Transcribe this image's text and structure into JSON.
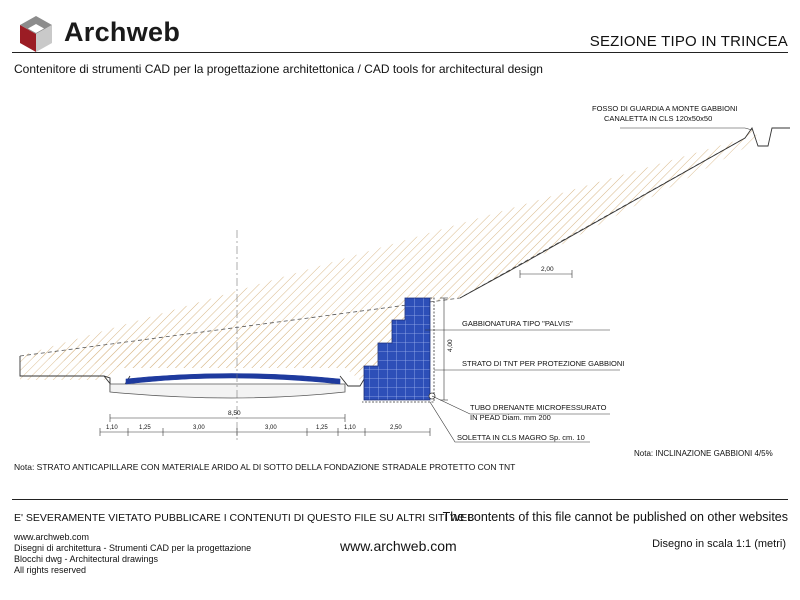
{
  "header": {
    "brand": "Archweb",
    "title": "SEZIONE TIPO IN TRINCEA",
    "subtitle": "Contenitore di strumenti CAD per la progettazione architettonica  /  CAD tools for architectural design",
    "brand_color": "#9b1c24"
  },
  "drawing": {
    "labels": {
      "fosso_line1": "FOSSO DI GUARDIA A MONTE GABBIONI",
      "fosso_line2": "CANALETTA IN CLS 120x50x50",
      "gabbionatura": "GABBIONATURA TIPO \"PALVIS\"",
      "strato_tnt": "STRATO DI TNT PER PROTEZIONE GABBIONI",
      "tubo_line1": "TUBO DRENANTE MICROFESSURATO",
      "tubo_line2": "IN PEAD Diam. mm 200",
      "soletta": "SOLETTA IN CLS MAGRO Sp. cm. 10",
      "note_inclinazione": "Nota: INCLINAZIONE GABBIONI 4/5%",
      "note_strato": "Nota: STRATO ANTICAPILLARE CON MATERIALE ARIDO AL DI SOTTO DELLA FONDAZIONE STRADALE PROTETTO CON TNT"
    },
    "dimensions": {
      "berm_width": "2,00",
      "gabion_height": "4,00",
      "road_width": "8,50",
      "segments": [
        "1,10",
        "1,25",
        "3,00",
        "3,00",
        "1,25",
        "1,10",
        "2,50"
      ]
    },
    "colors": {
      "gabion": "#2d4fb8",
      "gabion_grid": "#9fb3ee",
      "pavement": "#1e3a9e",
      "soil_hatch": "#d9b98a",
      "line": "#333333"
    }
  },
  "footer": {
    "warning_it": "E' SEVERAMENTE VIETATO PUBBLICARE I CONTENUTI DI QUESTO FILE SU ALTRI SITI WEB",
    "warning_en": "The contents of this file cannot be published on other websites",
    "lines": [
      "www.archweb.com",
      "Disegni di architettura - Strumenti CAD  per la progettazione",
      "Blocchi dwg - Architectural drawings",
      "All rights reserved"
    ],
    "url": "www.archweb.com",
    "scale": "Disegno in scala 1:1 (metri)"
  }
}
